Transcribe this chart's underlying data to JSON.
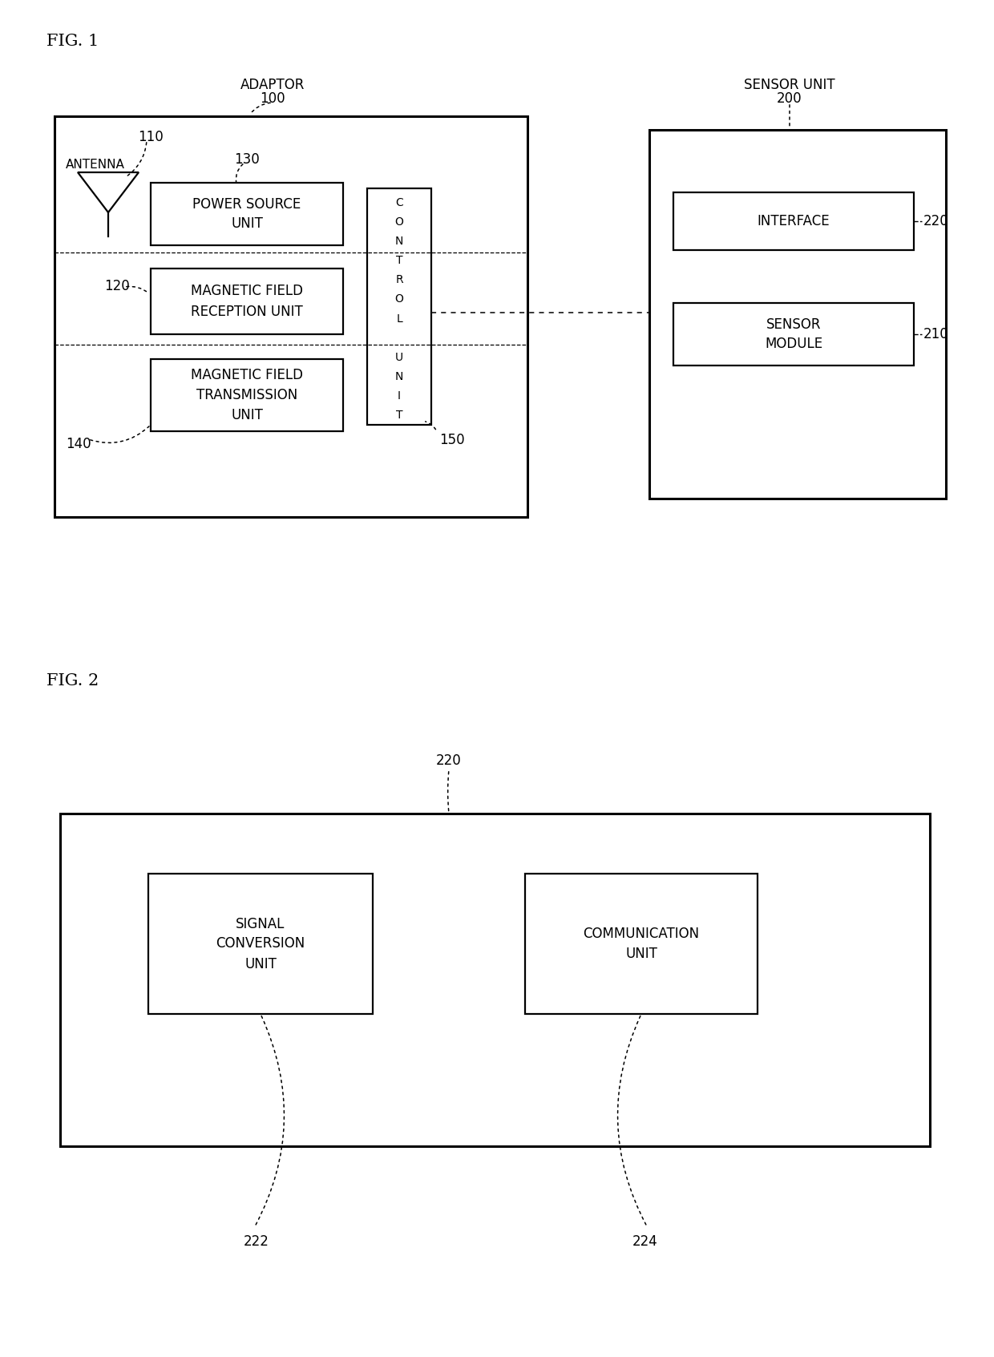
{
  "fig1_label": "FIG. 1",
  "fig2_label": "FIG. 2",
  "adaptor_label": "ADAPTOR",
  "adaptor_num": "100",
  "sensor_unit_label": "SENSOR UNIT",
  "sensor_unit_num": "200",
  "antenna_label": "ANTENNA",
  "antenna_num": "110",
  "power_source_label": [
    "POWER SOURCE",
    "UNIT"
  ],
  "power_source_num": "130",
  "mag_field_reception_label": [
    "MAGNETIC FIELD",
    "RECEPTION UNIT"
  ],
  "mag_field_reception_num": "120",
  "mag_field_transmission_label": [
    "MAGNETIC FIELD",
    "TRANSMISSION",
    "UNIT"
  ],
  "mag_field_transmission_num": "140",
  "control_unit_letters": [
    "C",
    "O",
    "N",
    "T",
    "R",
    "O",
    "L",
    "",
    "U",
    "N",
    "I",
    "T"
  ],
  "control_unit_num": "150",
  "interface_label": "INTERFACE",
  "interface_num": "220",
  "sensor_module_label": [
    "SENSOR",
    "MODULE"
  ],
  "sensor_module_num": "210",
  "signal_conversion_label": [
    "SIGNAL",
    "CONVERSION",
    "UNIT"
  ],
  "signal_conversion_num": "222",
  "communication_unit_label": [
    "COMMUNICATION",
    "UNIT"
  ],
  "communication_unit_num": "224",
  "fig2_interface_num": "220"
}
